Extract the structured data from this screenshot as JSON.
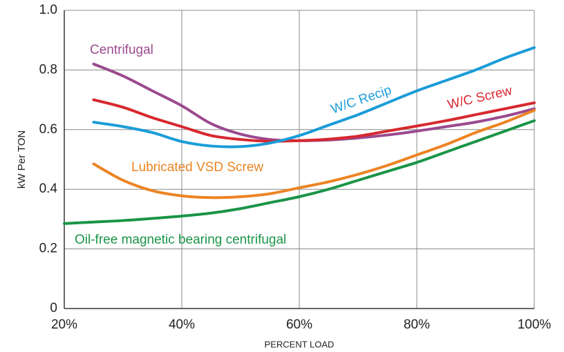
{
  "chart_data": {
    "type": "line",
    "x_label": "PERCENT LOAD",
    "y_label": "kW Per TON",
    "x": [
      20,
      25,
      30,
      35,
      40,
      45,
      50,
      55,
      60,
      65,
      70,
      75,
      80,
      85,
      90,
      95,
      100
    ],
    "series": [
      {
        "name": "Centrifugal",
        "color": "#9b4a8f",
        "values": [
          null,
          0.82,
          0.78,
          0.73,
          0.68,
          0.62,
          0.585,
          0.567,
          0.563,
          0.565,
          0.572,
          0.582,
          0.595,
          0.61,
          0.625,
          0.645,
          0.67
        ]
      },
      {
        "name": "W/C Screw",
        "color": "#d7282f",
        "values": [
          null,
          0.7,
          0.675,
          0.64,
          0.61,
          0.58,
          0.567,
          0.561,
          0.563,
          0.568,
          0.578,
          0.595,
          0.612,
          0.63,
          0.65,
          0.67,
          0.69
        ]
      },
      {
        "name": "W/C Recip",
        "color": "#1a9cd8",
        "values": [
          null,
          0.625,
          0.61,
          0.59,
          0.56,
          0.545,
          0.543,
          0.555,
          0.58,
          0.615,
          0.65,
          0.69,
          0.73,
          0.765,
          0.8,
          0.84,
          0.875
        ]
      },
      {
        "name": "Lubricated VSD Screw",
        "color": "#ec8423",
        "values": [
          null,
          0.485,
          0.43,
          0.395,
          0.378,
          0.372,
          0.375,
          0.385,
          0.405,
          0.425,
          0.45,
          0.48,
          0.515,
          0.55,
          0.59,
          0.625,
          0.665
        ]
      },
      {
        "name": "Oil-free magnetic bearing centrifugal",
        "color": "#1a9447",
        "values": [
          0.285,
          0.29,
          0.295,
          0.302,
          0.31,
          0.32,
          0.335,
          0.355,
          0.375,
          0.4,
          0.43,
          0.46,
          0.49,
          0.525,
          0.56,
          0.595,
          0.63
        ]
      }
    ],
    "xlim": [
      20,
      100
    ],
    "xticks": [
      {
        "value": 20,
        "label": "20%"
      },
      {
        "value": 40,
        "label": "40%"
      },
      {
        "value": 60,
        "label": "60%"
      },
      {
        "value": 80,
        "label": "80%"
      },
      {
        "value": 100,
        "label": "100%"
      }
    ],
    "ylim": [
      0,
      1
    ],
    "yticks": [
      0,
      0.2,
      0.4,
      0.6,
      0.8,
      {
        "value": 1,
        "label": "1.0"
      }
    ],
    "grid": true
  }
}
